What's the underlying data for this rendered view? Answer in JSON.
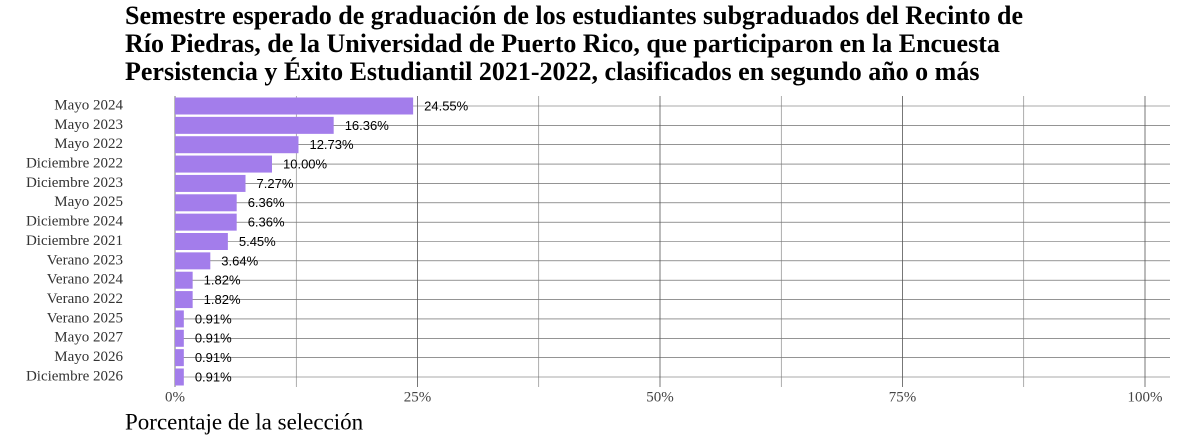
{
  "chart_data": {
    "type": "bar",
    "orientation": "horizontal",
    "title": [
      "Semestre esperado de graduación de los estudiantes subgraduados del Recinto de",
      "Río Piedras, de la Universidad de Puerto Rico, que participaron en la Encuesta",
      "Persistencia y Éxito Estudiantil 2021-2022, clasificados en segundo año o más"
    ],
    "x_label": "Porcentaje de la selección",
    "categories": [
      "Mayo 2024",
      "Mayo 2023",
      "Mayo 2022",
      "Diciembre 2022",
      "Diciembre 2023",
      "Mayo 2025",
      "Diciembre 2024",
      "Diciembre 2021",
      "Verano 2023",
      "Verano 2024",
      "Verano 2022",
      "Verano 2025",
      "Mayo 2027",
      "Mayo 2026",
      "Diciembre 2026"
    ],
    "values": [
      24.55,
      16.36,
      12.73,
      10.0,
      7.27,
      6.36,
      6.36,
      5.45,
      3.64,
      1.82,
      1.82,
      0.91,
      0.91,
      0.91,
      0.91
    ],
    "value_labels": [
      "24.55%",
      "16.36%",
      "12.73%",
      "10.00%",
      "7.27%",
      "6.36%",
      "6.36%",
      "5.45%",
      "3.64%",
      "1.82%",
      "1.82%",
      "0.91%",
      "0.91%",
      "0.91%",
      "0.91%"
    ],
    "color": "#a37deb",
    "xlim": [
      0,
      100
    ],
    "xticks": [
      {
        "value": 0,
        "label": "0%"
      },
      {
        "value": 25,
        "label": "25%"
      },
      {
        "value": 50,
        "label": "50%"
      },
      {
        "value": 75,
        "label": "75%"
      },
      {
        "value": 100,
        "label": "100%"
      }
    ],
    "minor_xticks": [
      12.5,
      37.5,
      62.5,
      87.5
    ],
    "grid": true
  }
}
